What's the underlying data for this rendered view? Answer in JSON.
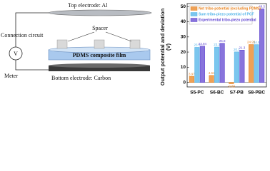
{
  "diagram": {
    "top_electrode": "Top electrode: Al",
    "connection": "Connection circuit",
    "meter_symbol": "V",
    "spacer": "Spacer",
    "film": "PDMS composite film",
    "meter": "Meter",
    "bottom_electrode": "Bottom electrode: Carbon"
  },
  "chart_data": {
    "type": "bar",
    "y_label": "Output potential and deviation (V)",
    "categories": [
      "S5-PC",
      "S6-BC",
      "S7-PB",
      "S8-PBC"
    ],
    "series": [
      {
        "name": "Net tribo-potential (excluding PDMS)",
        "color": "#e8821e",
        "values": [
          3.97,
          4.61,
          -0.89,
          24.95
        ]
      },
      {
        "name": "Sum tribo-piezo potential of PCF",
        "color": "#4fb3e8",
        "values": [
          23.1,
          23.3,
          20.1,
          24.9
        ]
      },
      {
        "name": "Experimental tribo-piezo potential",
        "color": "#6045d0",
        "values": [
          23.94,
          25.8,
          21.3,
          48.5
        ]
      }
    ],
    "ylim": [
      -3,
      52
    ],
    "yticks": [
      0,
      10,
      20,
      30,
      40,
      50
    ],
    "legend": "upper left"
  }
}
